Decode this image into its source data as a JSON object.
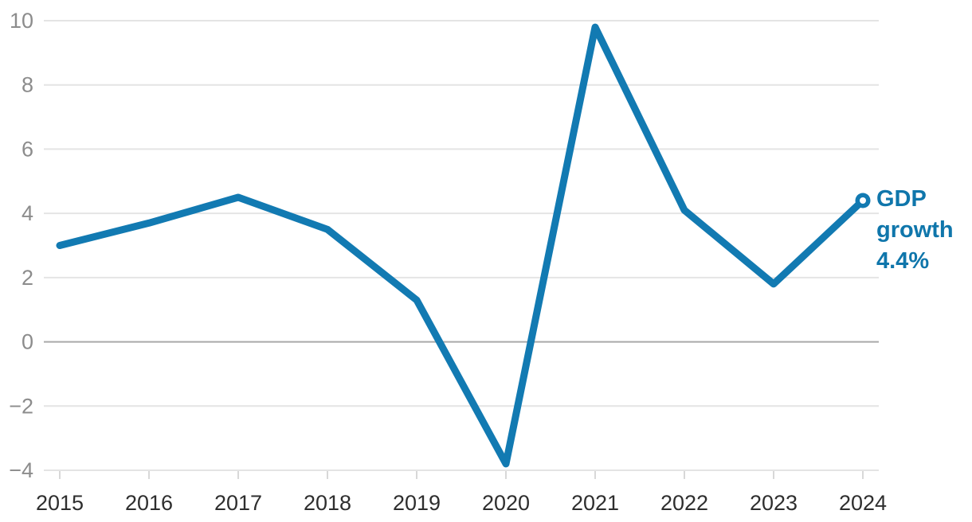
{
  "chart_data": {
    "type": "line",
    "title": "",
    "xlabel": "",
    "ylabel": "",
    "x": [
      "2015",
      "2016",
      "2017",
      "2018",
      "2019",
      "2020",
      "2021",
      "2022",
      "2023",
      "2024"
    ],
    "series": [
      {
        "name": "GDP growth",
        "values": [
          3.0,
          3.7,
          4.5,
          3.5,
          1.3,
          -3.8,
          9.8,
          4.1,
          1.8,
          4.4
        ]
      }
    ],
    "ylim": [
      -4,
      10
    ],
    "yticks": [
      10,
      8,
      6,
      4,
      2,
      0,
      -2,
      -4
    ],
    "grid": "horizontal",
    "legend_position": "none",
    "colors": {
      "line": "#127ab2",
      "marker_fill": "#127ab2",
      "marker_hole": "#ffffff",
      "gridline": "#e4e4e4",
      "zero_line": "#a9a9a9",
      "x_tick": "#d8d8d8",
      "y_label": "#8c8c8c",
      "x_label": "#2e2e2e",
      "background": "#ffffff"
    }
  },
  "annotation": {
    "lines": [
      "GDP",
      "growth",
      "4.4%"
    ],
    "full_text": "GDP growth 4.4%",
    "color": "#0f76ab"
  }
}
